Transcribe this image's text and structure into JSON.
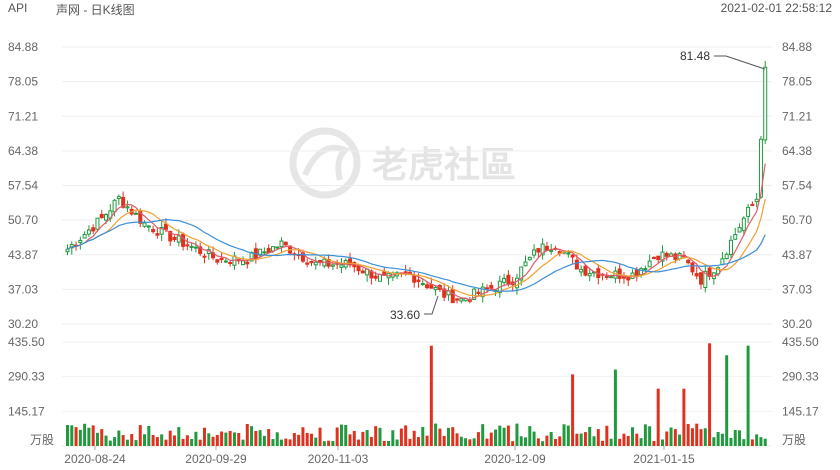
{
  "header": {
    "symbol": "API",
    "name": "声网 - 日K线图",
    "timestamp": "2021-02-01 22:58:12"
  },
  "watermark": {
    "text": "老虎社區"
  },
  "colors": {
    "up": "#1f9a3e",
    "down": "#e0311f",
    "ma5": "#e05a6a",
    "ma10": "#f0a030",
    "ma20": "#3a8fd8"
  },
  "chart_data": {
    "type": "candlestick",
    "price_axis": {
      "ticks": [
        84.88,
        78.05,
        71.21,
        64.38,
        57.54,
        50.7,
        43.87,
        37.03,
        30.2
      ],
      "ylim": [
        30.2,
        84.88
      ]
    },
    "volume_axis": {
      "ticks": [
        435.5,
        290.33,
        145.17
      ],
      "unit": "万股",
      "ylim": [
        0,
        435.5
      ]
    },
    "date_labels": [
      "2020-08-24",
      "2020-09-29",
      "2020-11-03",
      "2020-12-09",
      "2021-01-15"
    ],
    "annotations": [
      {
        "text": "81.48",
        "kind": "max"
      },
      {
        "text": "33.60",
        "kind": "min"
      }
    ]
  }
}
